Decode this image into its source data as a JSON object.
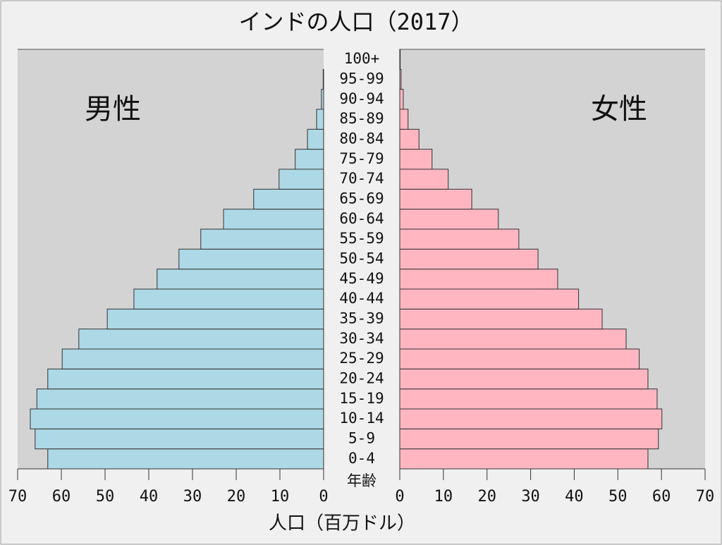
{
  "chart_data": {
    "type": "pyramid",
    "title": "インドの人口（2017）",
    "x_label": "人口（百万ドル）",
    "category_label": "年齢",
    "categories": [
      "0-4",
      "5-9",
      "10-14",
      "15-19",
      "20-24",
      "25-29",
      "30-34",
      "35-39",
      "40-44",
      "45-49",
      "50-54",
      "55-59",
      "60-64",
      "65-69",
      "70-74",
      "75-79",
      "80-84",
      "85-89",
      "90-94",
      "95-99",
      "100+"
    ],
    "series": [
      {
        "name": "男性",
        "color": "#add8e6",
        "values": [
          63.1,
          66.0,
          67.1,
          65.6,
          63.1,
          59.8,
          56.0,
          49.5,
          43.4,
          38.1,
          33.1,
          28.1,
          22.9,
          16.0,
          10.2,
          6.5,
          3.7,
          1.6,
          0.5,
          0.1,
          0.0
        ]
      },
      {
        "name": "女性",
        "color": "#ffb6c1",
        "values": [
          56.9,
          59.3,
          60.1,
          59.0,
          56.9,
          54.9,
          51.9,
          46.4,
          41.0,
          36.2,
          31.7,
          27.3,
          22.6,
          16.5,
          11.1,
          7.4,
          4.4,
          1.9,
          0.8,
          0.3,
          0.1
        ]
      }
    ],
    "xlim": [
      0,
      70
    ],
    "xticks": [
      0,
      10,
      20,
      30,
      40,
      50,
      60,
      70
    ]
  }
}
